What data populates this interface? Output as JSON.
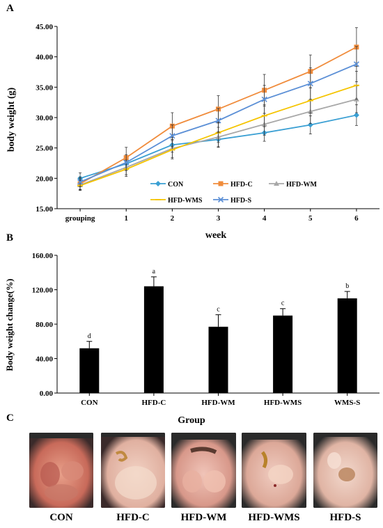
{
  "panels": {
    "a": "A",
    "b": "B",
    "c": "C"
  },
  "chart_data": [
    {
      "type": "line",
      "xlabel": "week",
      "ylabel": "body weight (g)",
      "categories": [
        "grouping",
        "1",
        "2",
        "3",
        "4",
        "5",
        "6"
      ],
      "ylim": [
        15,
        45
      ],
      "yticks": [
        "15.00",
        "20.00",
        "25.00",
        "30.00",
        "35.00",
        "40.00",
        "45.00"
      ],
      "grid": false,
      "legend_position": "bottom-right",
      "series": [
        {
          "name": "CON",
          "color": "#3a9fd3",
          "marker": "diamond",
          "values": [
            20.0,
            22.4,
            25.5,
            26.4,
            27.5,
            28.8,
            30.4
          ],
          "errors": [
            0.9,
            1.1,
            1.2,
            1.3,
            1.4,
            1.5,
            1.7
          ]
        },
        {
          "name": "HFD-C",
          "color": "#f08c3c",
          "marker": "square",
          "values": [
            19.1,
            23.4,
            28.6,
            31.4,
            34.5,
            37.6,
            41.6
          ],
          "errors": [
            0.9,
            1.7,
            2.2,
            2.2,
            2.6,
            2.7,
            3.2
          ]
        },
        {
          "name": "HFD-WM",
          "color": "#a8a8a8",
          "marker": "triangle",
          "values": [
            18.9,
            21.8,
            24.9,
            26.8,
            28.9,
            31.0,
            33.0
          ],
          "errors": [
            0.8,
            1.2,
            1.5,
            1.6,
            1.8,
            2.0,
            2.2
          ]
        },
        {
          "name": "HFD-WMS",
          "color": "#f5c400",
          "marker": "line",
          "values": [
            18.8,
            21.5,
            24.7,
            27.5,
            30.3,
            32.8,
            35.3
          ],
          "errors": [
            0.8,
            1.2,
            1.5,
            1.6,
            1.8,
            2.1,
            2.3
          ]
        },
        {
          "name": "HFD-S",
          "color": "#5b8fd6",
          "marker": "x",
          "values": [
            19.4,
            22.6,
            27.0,
            29.5,
            33.0,
            35.6,
            38.8
          ],
          "errors": [
            0.8,
            1.3,
            1.8,
            2.0,
            2.3,
            2.6,
            2.9
          ]
        }
      ]
    },
    {
      "type": "bar",
      "xlabel": "",
      "ylabel": "Body weight change(%)",
      "categories": [
        "CON",
        "HFD-C",
        "HFD-WM",
        "HFD-WMS",
        "WMS-S"
      ],
      "values": [
        52,
        124,
        77,
        90,
        110
      ],
      "errors": [
        8,
        11,
        14,
        8,
        8
      ],
      "annotations": [
        "d",
        "a",
        "c",
        "c",
        "b"
      ],
      "ylim": [
        0,
        160
      ],
      "yticks": [
        "0.00",
        "40.00",
        "80.00",
        "120.00",
        "160.00"
      ],
      "bar_color": "#000000"
    }
  ],
  "photos": {
    "title": "Group",
    "labels": [
      "CON",
      "HFD-C",
      "HFD-WM",
      "HFD-WMS",
      "HFD-S"
    ]
  }
}
